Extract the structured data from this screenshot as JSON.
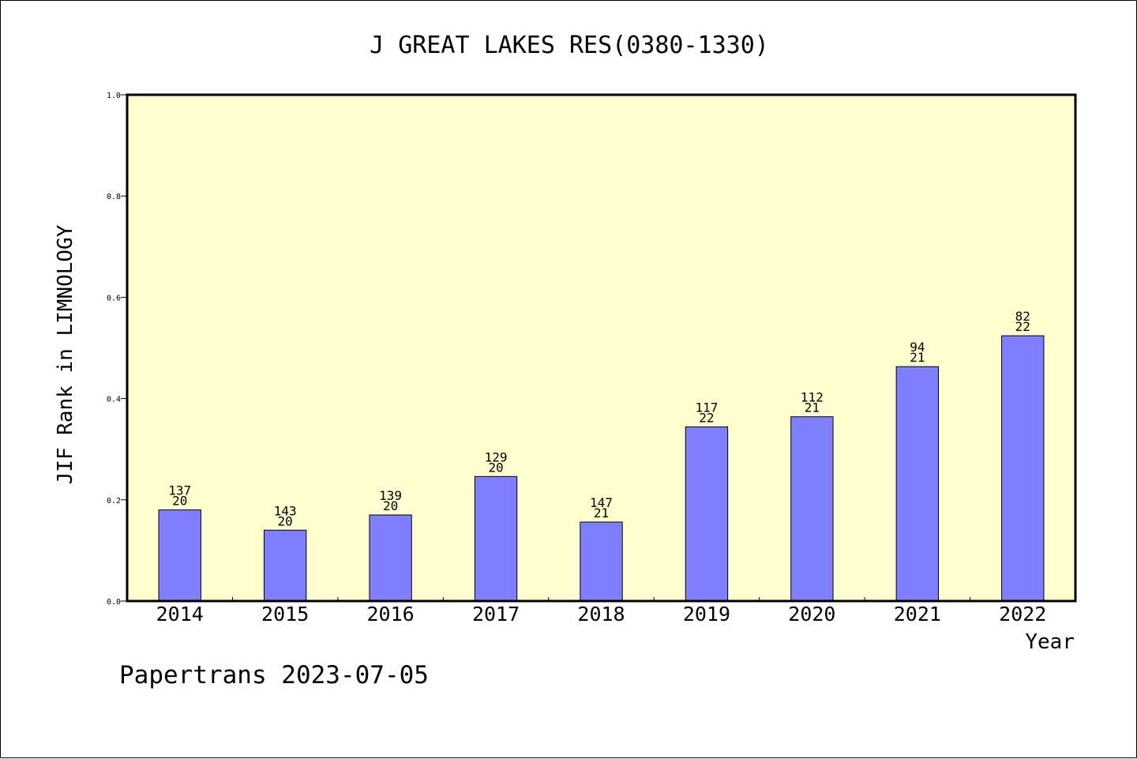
{
  "chart_data": {
    "type": "bar",
    "title": "J GREAT LAKES RES(0380-1330)",
    "ylabel": "JIF Rank in LIMNOLOGY",
    "xlabel": "Year",
    "categories": [
      "2014",
      "2015",
      "2016",
      "2017",
      "2018",
      "2019",
      "2020",
      "2021",
      "2022"
    ],
    "values": [
      0.18,
      0.14,
      0.17,
      0.246,
      0.156,
      0.344,
      0.364,
      0.463,
      0.524
    ],
    "label_top": [
      "137",
      "143",
      "139",
      "129",
      "147",
      "117",
      "112",
      "94",
      "82"
    ],
    "label_bottom": [
      "20",
      "20",
      "20",
      "20",
      "21",
      "22",
      "21",
      "21",
      "22"
    ],
    "ylim": [
      0.0,
      1.0
    ],
    "yticks": [
      "0.0",
      "0.2",
      "0.4",
      "0.6",
      "0.8",
      "1.0"
    ],
    "bar_color": "#8080ff",
    "plot_background": "#ffffd0",
    "grid": false,
    "legend": "none"
  },
  "footer": "Papertrans 2023-07-05"
}
